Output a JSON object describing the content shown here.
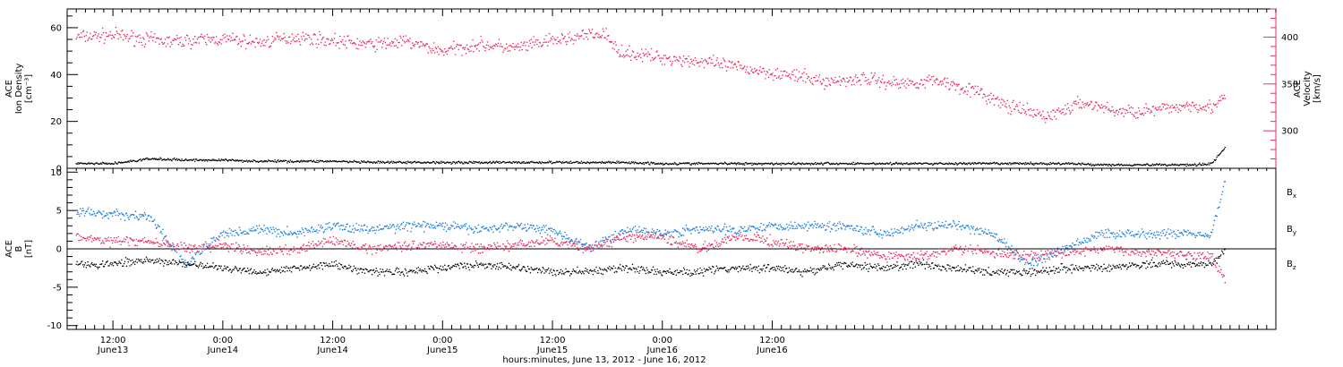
{
  "chart_data": [
    {
      "type": "scatter",
      "panel": "top",
      "ylabel_left": [
        "ACE",
        "Ion Density",
        "[cm⁻³]"
      ],
      "ylabel_right": [
        "ACE",
        "Velocity",
        "[km/s]"
      ],
      "ylim_left": [
        0,
        68
      ],
      "yticks_left": [
        0,
        20,
        40,
        60
      ],
      "ylim_right": [
        260,
        430
      ],
      "yticks_right": [
        300,
        350,
        400
      ],
      "series": [
        {
          "axis": "right",
          "color": "#e8305e",
          "x": [
            8,
            12,
            18,
            24,
            28,
            32,
            36,
            40,
            44,
            48,
            52,
            56,
            60,
            64,
            66,
            66.5,
            68,
            72,
            76,
            80,
            84,
            88,
            90,
            94,
            98,
            102,
            106,
            110,
            114,
            118,
            122,
            126,
            130,
            132,
            133.5
          ],
          "y": [
            400,
            402,
            395,
            398,
            394,
            400,
            396,
            392,
            395,
            385,
            392,
            388,
            396,
            402,
            403,
            390,
            383,
            378,
            374,
            368,
            362,
            356,
            352,
            356,
            350,
            354,
            343,
            325,
            315,
            330,
            320,
            322,
            328,
            325,
            335
          ]
        },
        {
          "axis": "left",
          "color": "#000000",
          "x": [
            8,
            12,
            14,
            16,
            20,
            24,
            28,
            32,
            36,
            40,
            44,
            48,
            52,
            56,
            60,
            64,
            68,
            72,
            76,
            80,
            84,
            88,
            92,
            96,
            100,
            104,
            108,
            112,
            116,
            120,
            124,
            128,
            130,
            132,
            133.5
          ],
          "y": [
            2,
            2,
            3,
            4,
            3.5,
            3.5,
            3,
            3,
            3,
            2.5,
            2.5,
            2.5,
            2.5,
            2.5,
            2.5,
            2.5,
            2.5,
            2,
            2,
            2,
            2,
            2,
            2,
            2,
            2,
            2,
            2,
            2,
            2,
            1.5,
            1.5,
            1.5,
            1.5,
            2,
            9
          ]
        }
      ]
    },
    {
      "type": "scatter",
      "panel": "bottom",
      "ylabel_left": [
        "ACE",
        "B",
        "[nT]"
      ],
      "ylim": [
        -10.5,
        10.5
      ],
      "yticks": [
        -10,
        -5,
        0,
        5,
        10
      ],
      "series": [
        {
          "name": "Bx",
          "color": "#000000",
          "x": [
            8,
            12,
            16,
            20,
            24,
            28,
            32,
            36,
            40,
            44,
            48,
            52,
            56,
            60,
            64,
            68,
            72,
            76,
            80,
            84,
            88,
            92,
            96,
            100,
            104,
            108,
            112,
            116,
            120,
            124,
            128,
            132,
            133.5
          ],
          "y": [
            -2,
            -2,
            -1.5,
            -2,
            -2.5,
            -3,
            -2.5,
            -2,
            -3,
            -3,
            -2.5,
            -2,
            -2.5,
            -3,
            -3,
            -2.5,
            -3,
            -3,
            -2.5,
            -2.5,
            -3,
            -2,
            -2.5,
            -2,
            -2.5,
            -3,
            -3,
            -2.5,
            -2.5,
            -2,
            -2,
            -2,
            0
          ]
        },
        {
          "name": "By",
          "color": "#1f7fe0",
          "x": [
            8,
            12,
            16,
            18,
            20,
            24,
            28,
            32,
            36,
            40,
            44,
            48,
            52,
            56,
            60,
            64,
            68,
            72,
            76,
            80,
            84,
            88,
            92,
            96,
            100,
            104,
            108,
            112,
            116,
            120,
            124,
            128,
            132,
            133.5
          ],
          "y": [
            4.8,
            4.5,
            4.2,
            1,
            -2,
            2,
            2.5,
            2,
            3,
            2.5,
            3,
            3,
            2.5,
            3,
            2.5,
            0,
            2.5,
            2,
            2.5,
            2.5,
            3,
            3,
            3,
            2,
            3,
            3,
            2,
            -2,
            0,
            2,
            2,
            2,
            2,
            9
          ]
        },
        {
          "name": "Bz",
          "color": "#e8305e",
          "x": [
            8,
            12,
            16,
            20,
            24,
            28,
            32,
            36,
            40,
            44,
            48,
            52,
            56,
            60,
            64,
            68,
            72,
            76,
            80,
            84,
            88,
            92,
            96,
            100,
            104,
            108,
            112,
            116,
            120,
            124,
            128,
            132,
            133.5
          ],
          "y": [
            1.5,
            1,
            1,
            0,
            0.5,
            -0.5,
            0,
            1,
            0,
            0.5,
            0.5,
            0,
            0.5,
            1,
            0,
            1.5,
            1.5,
            0,
            1.5,
            1,
            0,
            0,
            -1,
            -1,
            0,
            -0.5,
            -1,
            -0.5,
            0,
            -0.5,
            -0.5,
            -1,
            -4
          ]
        }
      ]
    }
  ],
  "legend": [
    "Bx",
    "By",
    "Bz"
  ],
  "xaxis": {
    "range_hours": [
      7,
      139
    ],
    "major_ticks": [
      {
        "h": 12,
        "time": "12:00",
        "date": "June13"
      },
      {
        "h": 24,
        "time": "0:00",
        "date": "June14"
      },
      {
        "h": 36,
        "time": "12:00",
        "date": "June14"
      },
      {
        "h": 48,
        "time": "0:00",
        "date": "June15"
      },
      {
        "h": 60,
        "time": "12:00",
        "date": "June15"
      },
      {
        "h": 72,
        "time": "0:00",
        "date": "June16"
      },
      {
        "h": 84,
        "time": "12:00",
        "date": "June16"
      }
    ],
    "label": "hours:minutes, June 13, 2012 - June 16, 2012"
  },
  "colors": {
    "axis": "#000000",
    "velocity": "#e8305e",
    "by": "#1f7fe0"
  }
}
